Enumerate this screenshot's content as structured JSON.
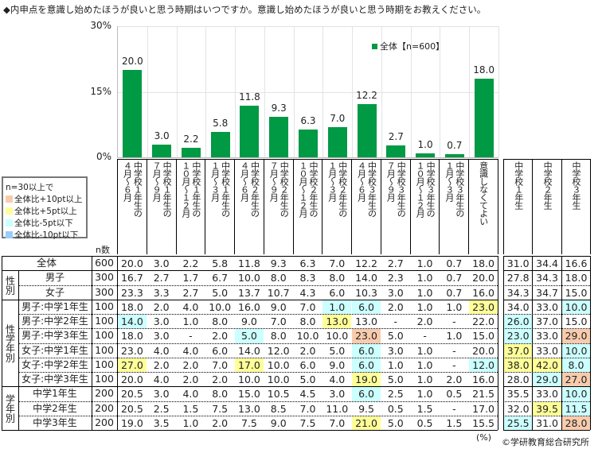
{
  "title": "◆内申点を意識し始めたほうが良いと思う時期はいつですか。意識し始めたほうが良いと思う時期をお教えください。",
  "legend_label": "全体【n=600】",
  "color_legend": {
    "title": "n=30以上で",
    "items": [
      {
        "label": "全体比+10pt以上",
        "color": "#f8cbad"
      },
      {
        "label": "全体比+5pt以上",
        "color": "#ffff99"
      },
      {
        "label": "全体比-5pt以下",
        "color": "#ccffff"
      },
      {
        "label": "全体比-10pt以下",
        "color": "#99ccff"
      }
    ]
  },
  "n_header": "n数",
  "unit_note": "(%)",
  "copyright": "©学研教育総合研究所",
  "colors": {
    "bar": "#009944"
  },
  "chart_data": {
    "type": "bar",
    "title": "",
    "series_name": "全体【n=600】",
    "ylim": [
      0,
      30
    ],
    "yticks": [
      "0%",
      "15%",
      "30%"
    ],
    "yticks_values": [
      0,
      15,
      30
    ],
    "categories": [
      [
        "中学校１年生の",
        "４月～６月"
      ],
      [
        "中学校１年生の",
        "７月～９月"
      ],
      [
        "中学校１年生の",
        "１０月～１２月"
      ],
      [
        "中学校１年生の",
        "１月～３月"
      ],
      [
        "中学校２年生の",
        "４月～６月"
      ],
      [
        "中学校２年生の",
        "７月～９月"
      ],
      [
        "中学校２年生の",
        "１０月～１２月"
      ],
      [
        "中学校２年生の",
        "１月～３月"
      ],
      [
        "中学校３年生の",
        "４月～６月"
      ],
      [
        "中学校３年生の",
        "７月～９月"
      ],
      [
        "中学校３年生の",
        "１０月～１２月"
      ],
      [
        "中学校３年生の",
        "１月～３月"
      ],
      [
        "意識しなくてよい"
      ]
    ],
    "values": [
      20.0,
      3.0,
      2.2,
      5.8,
      11.8,
      9.3,
      6.3,
      7.0,
      12.2,
      2.7,
      1.0,
      0.7,
      18.0
    ],
    "value_labels": [
      "20.0",
      "3.0",
      "2.2",
      "5.8",
      "11.8",
      "9.3",
      "6.3",
      "7.0",
      "12.2",
      "2.7",
      "1.0",
      "0.7",
      "18.0"
    ]
  },
  "summary_headers": [
    [
      "中学校１年生"
    ],
    [
      "中学校２年生"
    ],
    [
      "中学校３年生"
    ]
  ],
  "groups": [
    {
      "label": "性別",
      "from": 1,
      "to": 2
    },
    {
      "label": "性学年別",
      "from": 3,
      "to": 8
    },
    {
      "label": "学年別",
      "from": 9,
      "to": 11
    }
  ],
  "rows": [
    {
      "label": "全体",
      "n": "600",
      "v": [
        "20.0",
        "3.0",
        "2.2",
        "5.8",
        "11.8",
        "9.3",
        "6.3",
        "7.0",
        "12.2",
        "2.7",
        "1.0",
        "0.7",
        "18.0"
      ],
      "s": [
        "31.0",
        "34.4",
        "16.6"
      ],
      "hv": {},
      "hs": {}
    },
    {
      "label": "男子",
      "n": "300",
      "v": [
        "16.7",
        "2.7",
        "1.7",
        "6.7",
        "10.0",
        "8.0",
        "8.3",
        "8.0",
        "14.0",
        "2.3",
        "1.0",
        "0.7",
        "20.0"
      ],
      "s": [
        "27.8",
        "34.3",
        "18.0"
      ],
      "hv": {},
      "hs": {}
    },
    {
      "label": "女子",
      "n": "300",
      "v": [
        "23.3",
        "3.3",
        "2.7",
        "5.0",
        "13.7",
        "10.7",
        "4.3",
        "6.0",
        "10.3",
        "3.0",
        "1.0",
        "0.7",
        "16.0"
      ],
      "s": [
        "34.3",
        "34.7",
        "15.0"
      ],
      "hv": {},
      "hs": {}
    },
    {
      "label": "男子:中学1年生",
      "n": "100",
      "v": [
        "18.0",
        "2.0",
        "4.0",
        "10.0",
        "16.0",
        "9.0",
        "7.0",
        "1.0",
        "6.0",
        "2.0",
        "1.0",
        "1.0",
        "23.0"
      ],
      "s": [
        "34.0",
        "33.0",
        "10.0"
      ],
      "hv": {
        "7": "c",
        "8": "c",
        "12": "y"
      },
      "hs": {
        "2": "c"
      }
    },
    {
      "label": "男子:中学2年生",
      "n": "100",
      "v": [
        "14.0",
        "3.0",
        "1.0",
        "8.0",
        "9.0",
        "7.0",
        "8.0",
        "13.0",
        "13.0",
        "-",
        "2.0",
        "-",
        "22.0"
      ],
      "s": [
        "26.0",
        "37.0",
        "15.0"
      ],
      "hv": {
        "0": "c",
        "7": "y"
      },
      "hs": {
        "0": "c"
      }
    },
    {
      "label": "男子:中学3年生",
      "n": "100",
      "v": [
        "18.0",
        "3.0",
        "-",
        "2.0",
        "5.0",
        "8.0",
        "10.0",
        "10.0",
        "23.0",
        "5.0",
        "-",
        "1.0",
        "15.0"
      ],
      "s": [
        "23.0",
        "33.0",
        "29.0"
      ],
      "hv": {
        "4": "c",
        "8": "o"
      },
      "hs": {
        "0": "c",
        "2": "o"
      }
    },
    {
      "label": "女子:中学1年生",
      "n": "100",
      "v": [
        "23.0",
        "4.0",
        "4.0",
        "6.0",
        "14.0",
        "12.0",
        "2.0",
        "5.0",
        "6.0",
        "3.0",
        "1.0",
        "-",
        "20.0"
      ],
      "s": [
        "37.0",
        "33.0",
        "10.0"
      ],
      "hv": {
        "8": "c"
      },
      "hs": {
        "0": "y",
        "2": "c"
      }
    },
    {
      "label": "女子:中学2年生",
      "n": "100",
      "v": [
        "27.0",
        "2.0",
        "2.0",
        "7.0",
        "17.0",
        "10.0",
        "6.0",
        "9.0",
        "6.0",
        "1.0",
        "1.0",
        "-",
        "12.0"
      ],
      "s": [
        "38.0",
        "42.0",
        "8.0"
      ],
      "hv": {
        "0": "y",
        "4": "y",
        "8": "c",
        "12": "c"
      },
      "hs": {
        "0": "y",
        "1": "y",
        "2": "c"
      }
    },
    {
      "label": "女子:中学3年生",
      "n": "100",
      "v": [
        "20.0",
        "4.0",
        "2.0",
        "2.0",
        "10.0",
        "10.0",
        "5.0",
        "4.0",
        "19.0",
        "5.0",
        "1.0",
        "2.0",
        "16.0"
      ],
      "s": [
        "28.0",
        "29.0",
        "27.0"
      ],
      "hv": {
        "8": "y"
      },
      "hs": {
        "1": "c",
        "2": "o"
      }
    },
    {
      "label": "中学1年生",
      "n": "200",
      "v": [
        "20.5",
        "3.0",
        "4.0",
        "8.0",
        "15.0",
        "10.5",
        "4.5",
        "3.0",
        "6.0",
        "2.5",
        "1.0",
        "0.5",
        "21.5"
      ],
      "s": [
        "35.5",
        "33.0",
        "10.0"
      ],
      "hv": {
        "8": "c"
      },
      "hs": {
        "2": "c"
      }
    },
    {
      "label": "中学2年生",
      "n": "200",
      "v": [
        "20.5",
        "2.5",
        "1.5",
        "7.5",
        "13.0",
        "8.5",
        "7.0",
        "11.0",
        "9.5",
        "0.5",
        "1.5",
        "-",
        "17.0"
      ],
      "s": [
        "32.0",
        "39.5",
        "11.5"
      ],
      "hv": {},
      "hs": {
        "1": "y",
        "2": "c"
      }
    },
    {
      "label": "中学3年生",
      "n": "200",
      "v": [
        "19.0",
        "3.5",
        "1.0",
        "2.0",
        "7.5",
        "9.0",
        "7.5",
        "7.0",
        "21.0",
        "5.0",
        "0.5",
        "1.5",
        "15.5"
      ],
      "s": [
        "25.5",
        "31.0",
        "28.0"
      ],
      "hv": {
        "8": "y"
      },
      "hs": {
        "0": "c",
        "2": "o"
      }
    }
  ]
}
